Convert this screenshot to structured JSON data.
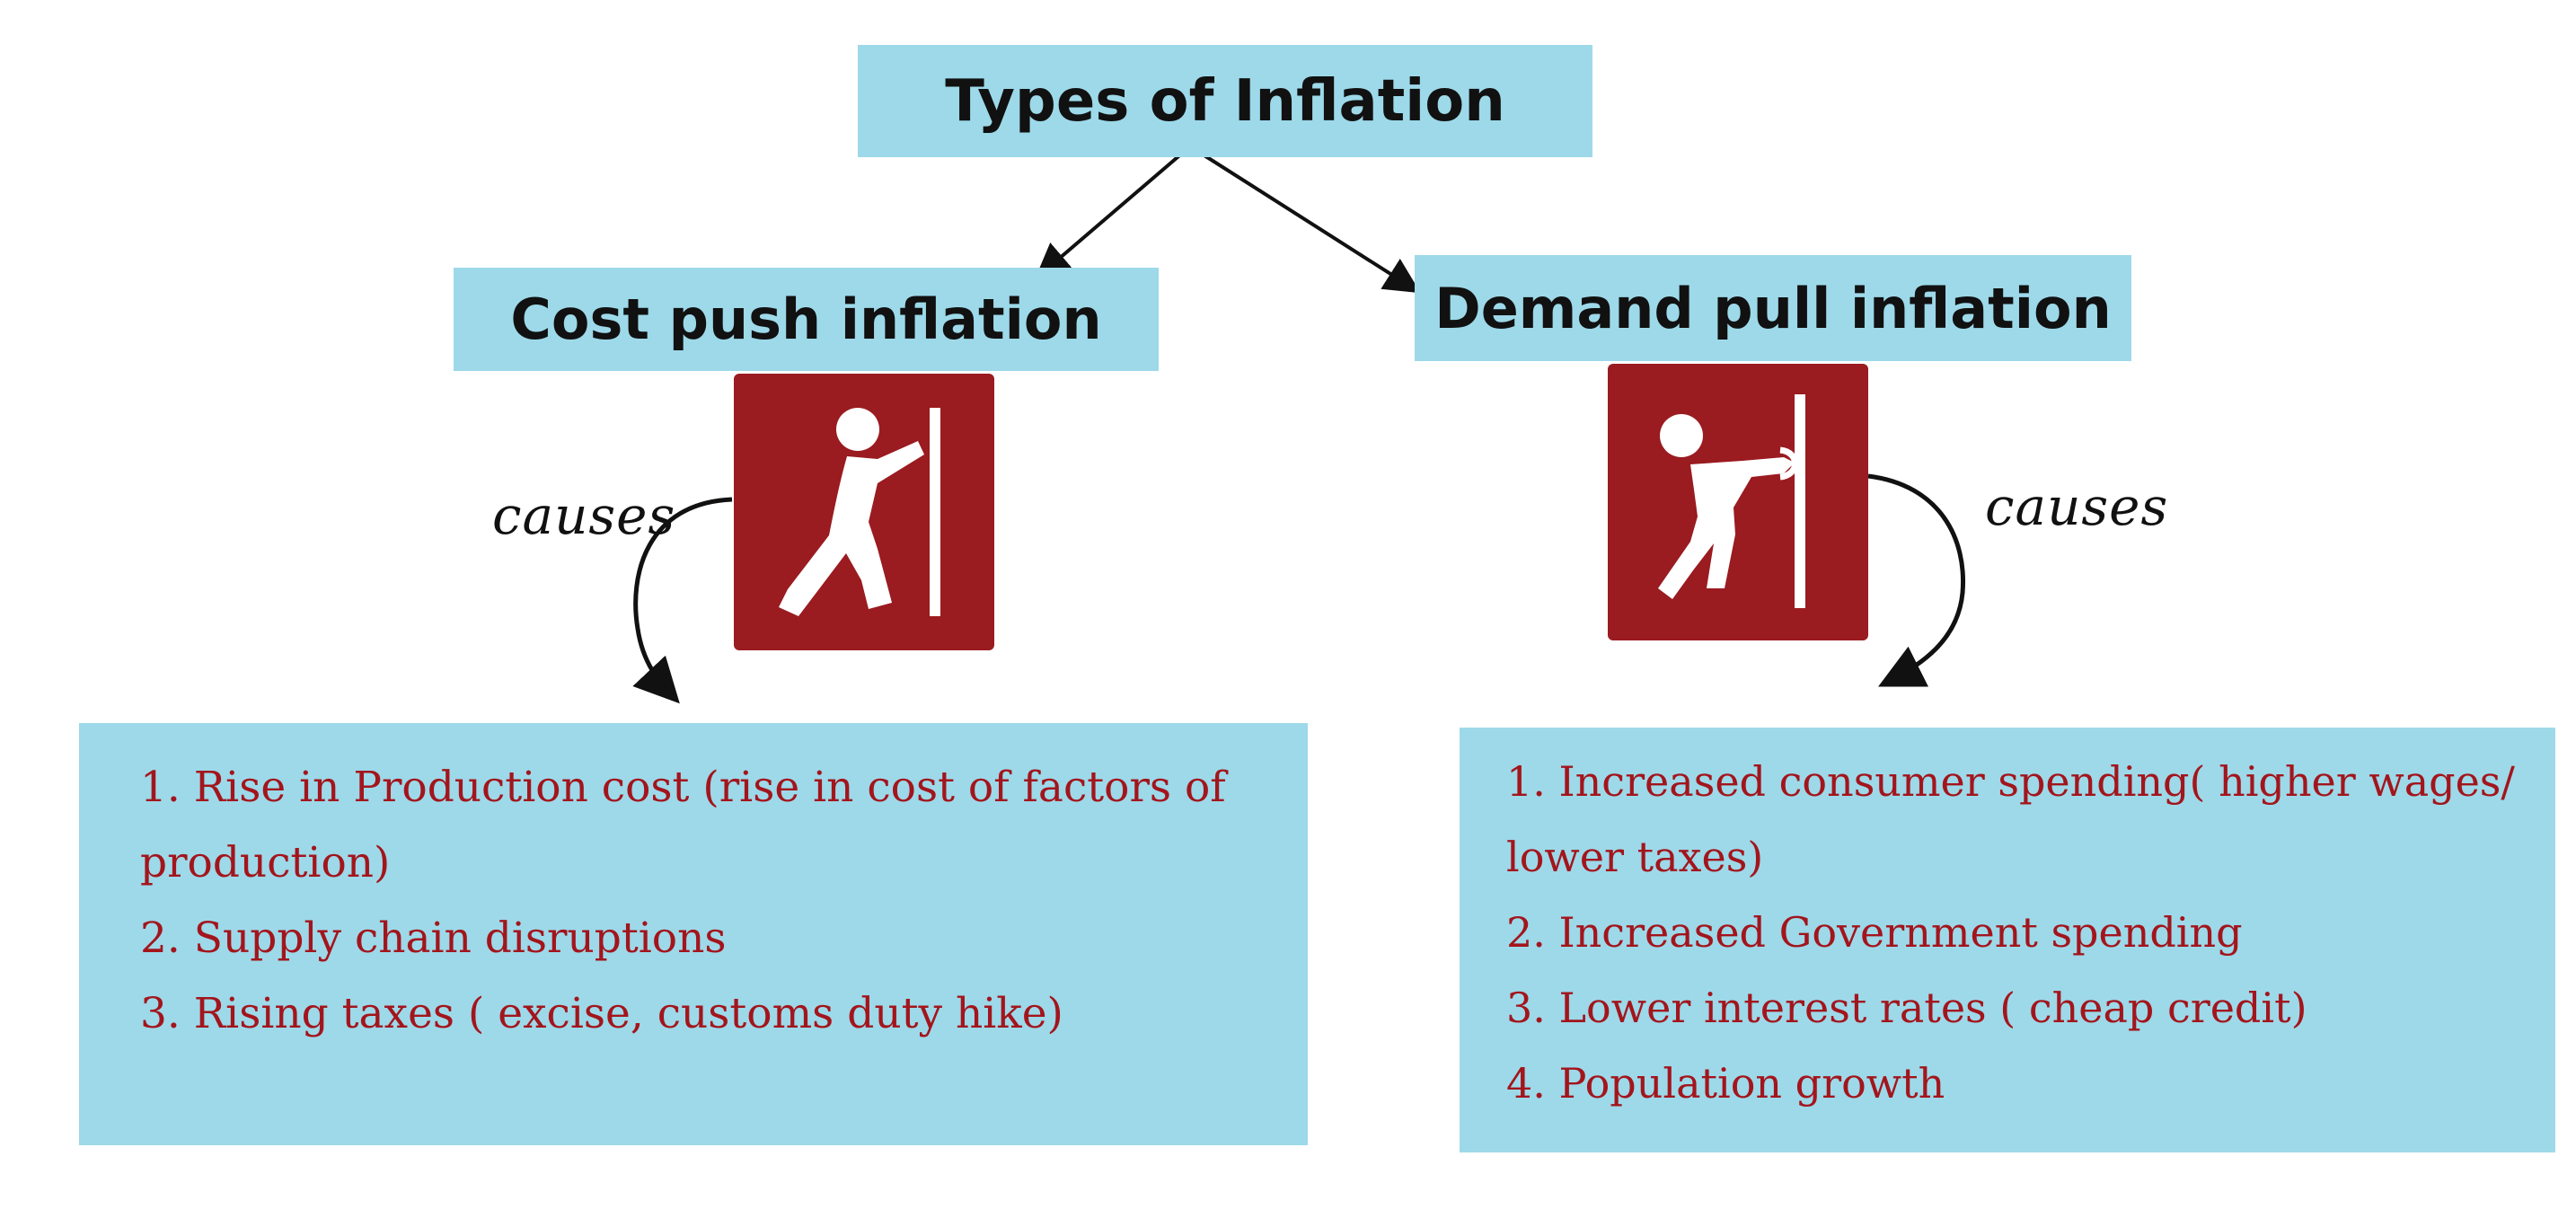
{
  "diagram": {
    "root": {
      "label": "Types of Inflation"
    },
    "branches": [
      {
        "id": "cost",
        "label": "Cost push inflation",
        "icon": "person-pushing-icon",
        "cause_label": "causes",
        "causes": [
          "1. Rise in Production cost (rise in cost of factors of production)",
          "2. Supply chain disruptions",
          "3. Rising taxes ( excise, customs duty hike)"
        ]
      },
      {
        "id": "demand",
        "label": "Demand pull inflation",
        "icon": "person-pulling-icon",
        "cause_label": "causes",
        "causes": [
          "1. Increased consumer spending( higher wages/ lower taxes)",
          "2. Increased Government spending",
          "3. Lower interest rates ( cheap credit)",
          "4. Population growth"
        ]
      }
    ],
    "colors": {
      "box_fill": "#9dd9e9",
      "icon_fill": "#9a1b20",
      "cause_text": "#a3151c",
      "arrow": "#111111"
    }
  }
}
